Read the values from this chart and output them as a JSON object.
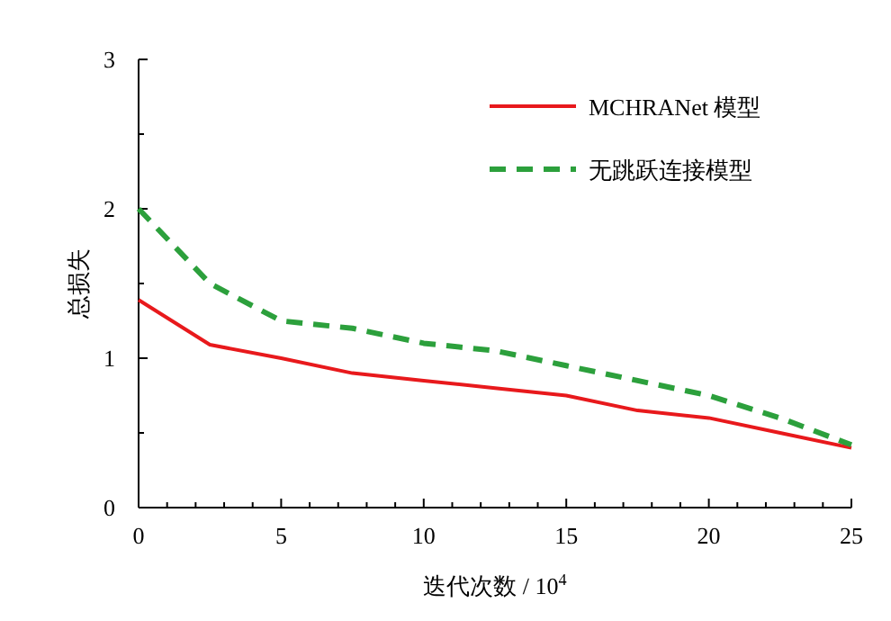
{
  "chart_data": {
    "type": "line",
    "xlabel": "迭代次数 / 10$^{4}$",
    "ylabel": "总损失",
    "x": [
      0,
      2.5,
      5,
      7.5,
      10,
      12.5,
      15,
      17.5,
      20,
      22.5,
      25
    ],
    "xlim": [
      0,
      25
    ],
    "xticks": [
      0,
      {
        "value": 1,
        "label": null
      },
      {
        "value": 2,
        "label": null
      },
      {
        "value": 3,
        "label": null
      },
      {
        "value": 4,
        "label": null
      },
      5,
      {
        "value": 6,
        "label": null
      },
      {
        "value": 7,
        "label": null
      },
      {
        "value": 8,
        "label": null
      },
      {
        "value": 9,
        "label": null
      },
      10,
      {
        "value": 11,
        "label": null
      },
      {
        "value": 12,
        "label": null
      },
      {
        "value": 13,
        "label": null
      },
      {
        "value": 14,
        "label": null
      },
      15,
      {
        "value": 16,
        "label": null
      },
      {
        "value": 17,
        "label": null
      },
      {
        "value": 18,
        "label": null
      },
      {
        "value": 19,
        "label": null
      },
      20,
      {
        "value": 21,
        "label": null
      },
      {
        "value": 22,
        "label": null
      },
      {
        "value": 23,
        "label": null
      },
      {
        "value": 24,
        "label": null
      },
      25
    ],
    "ylim": [
      0,
      3
    ],
    "yticks": [
      0,
      {
        "value": 0.5,
        "label": null
      },
      1,
      {
        "value": 1.5,
        "label": null
      },
      2,
      {
        "value": 2.5,
        "label": null
      },
      3
    ],
    "legend": "top right",
    "grid": false,
    "marker": "none",
    "series": [
      {
        "name": "MCHRANet 模型",
        "color": "#e8191c",
        "line_style": "solid",
        "values": [
          1.39,
          1.09,
          1.0,
          0.9,
          0.85,
          0.8,
          0.75,
          0.65,
          0.6,
          0.5,
          0.4
        ]
      },
      {
        "name": "无跳跃连接模型",
        "color": "#2ca03c",
        "line_style": "dashed",
        "values": [
          2.0,
          1.5,
          1.25,
          1.2,
          1.1,
          1.05,
          0.95,
          0.85,
          0.75,
          0.6,
          0.42
        ]
      }
    ]
  }
}
